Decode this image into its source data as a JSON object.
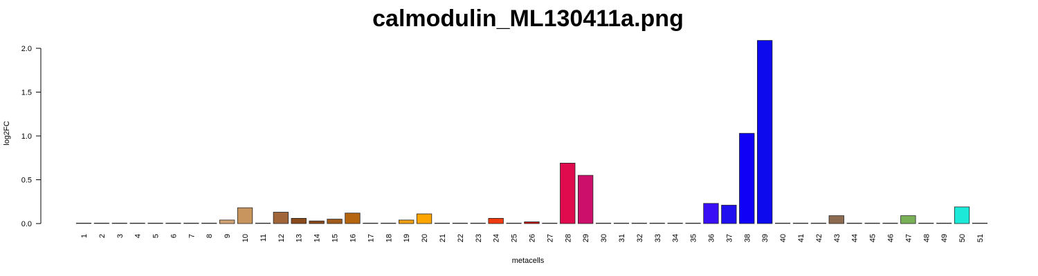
{
  "chart_data": {
    "type": "bar",
    "title": "calmodulin_ML130411a.png",
    "xlabel": "metacells",
    "ylabel": "log2FC",
    "ylim": [
      0,
      2.0
    ],
    "y_ticks": [
      "0.0",
      "0.5",
      "1.0",
      "1.5",
      "2.0"
    ],
    "categories": [
      "1",
      "2",
      "3",
      "4",
      "5",
      "6",
      "7",
      "8",
      "9",
      "10",
      "11",
      "12",
      "13",
      "14",
      "15",
      "16",
      "17",
      "18",
      "19",
      "20",
      "21",
      "22",
      "23",
      "24",
      "25",
      "26",
      "27",
      "28",
      "29",
      "30",
      "31",
      "32",
      "33",
      "34",
      "35",
      "36",
      "37",
      "38",
      "39",
      "40",
      "41",
      "42",
      "43",
      "44",
      "45",
      "46",
      "47",
      "48",
      "49",
      "50",
      "51"
    ],
    "values": [
      0,
      0,
      0,
      0,
      0,
      0,
      0,
      0,
      0.04,
      0.18,
      0,
      0.13,
      0.06,
      0.03,
      0.05,
      0.12,
      0,
      0,
      0.04,
      0.11,
      0,
      0,
      0,
      0.06,
      0,
      0.02,
      0,
      0.69,
      0.55,
      0,
      0,
      0,
      0,
      0,
      0,
      0.23,
      0.21,
      1.03,
      2.09,
      0,
      0,
      0,
      0.09,
      0,
      0,
      0,
      0.09,
      0,
      0,
      0.19,
      0
    ],
    "colors": [
      "#d8c3a5",
      "#d8c3a5",
      "#d8c3a5",
      "#d8c3a5",
      "#d8c3a5",
      "#d8c3a5",
      "#d8c3a5",
      "#d8c3a5",
      "#d4a373",
      "#c8955f",
      "#a0663a",
      "#a0663a",
      "#8b4a1c",
      "#8b4a1c",
      "#a05a1a",
      "#b5650e",
      "#d98b1a",
      "#e6951a",
      "#f0a010",
      "#ffa500",
      "#ff7f00",
      "#ff5a00",
      "#ff3a00",
      "#f03a10",
      "#e02a10",
      "#c81010",
      "#d01040",
      "#e00b4f",
      "#cc0f6a",
      "#b0108a",
      "#9010b0",
      "#7010d0",
      "#5c10e0",
      "#4a10f0",
      "#3a10f8",
      "#3910f5",
      "#2010f0",
      "#1000f5",
      "#0d0aee",
      "#1010d8",
      "#2a50c8",
      "#406090",
      "#8b6a50",
      "#8a7a60",
      "#6a9a50",
      "#6aaa50",
      "#78b058",
      "#50c870",
      "#30d8a0",
      "#1de9d8",
      "#1de9d8"
    ],
    "grid": false,
    "legend": "none"
  }
}
